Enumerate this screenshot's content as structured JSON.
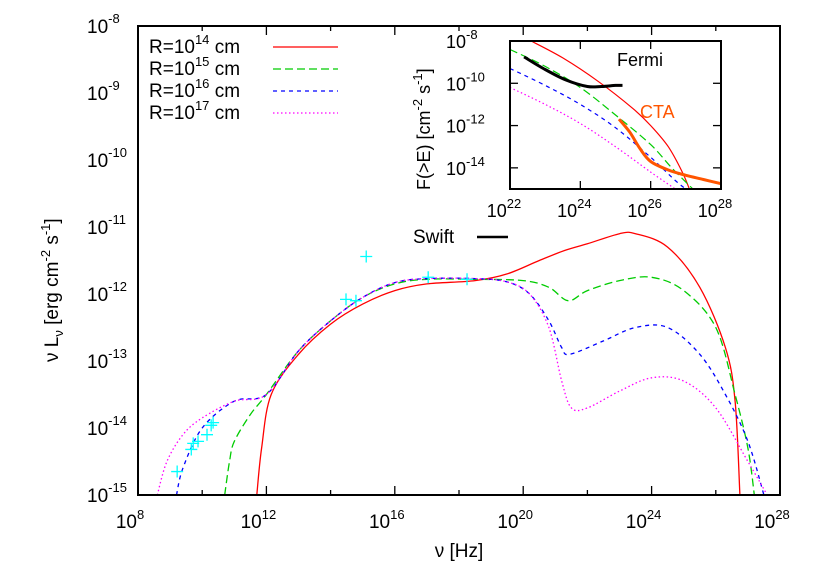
{
  "chart_data": [
    {
      "type": "line",
      "title": "",
      "xlabel": "ν [Hz]",
      "ylabel": "ν L_ν [erg cm^-2 s^-1]",
      "xscale": "log",
      "yscale": "log",
      "xlim": [
        100000000.0,
        1e+28
      ],
      "ylim": [
        1e-15,
        1e-08
      ],
      "x_ticks": [
        "10^8",
        "10^12",
        "10^16",
        "10^20",
        "10^24",
        "10^28"
      ],
      "y_ticks": [
        "10^-8",
        "10^-9",
        "10^-10",
        "10^-11",
        "10^-12",
        "10^-13",
        "10^-14",
        "10^-15"
      ],
      "legend_position": "top-left",
      "grid": false,
      "series": [
        {
          "name": "R=10^14 cm",
          "color": "#ff0000",
          "style": "solid",
          "log_points": [
            [
              11.7,
              -15.0
            ],
            [
              11.85,
              -14.3
            ],
            [
              12.15,
              -13.5
            ],
            [
              13.0,
              -12.9
            ],
            [
              14.0,
              -12.45
            ],
            [
              15.0,
              -12.15
            ],
            [
              16.0,
              -11.95
            ],
            [
              17.0,
              -11.85
            ],
            [
              18.5,
              -11.8
            ],
            [
              19.5,
              -11.7
            ],
            [
              20.5,
              -11.5
            ],
            [
              21.3,
              -11.35
            ],
            [
              22.0,
              -11.25
            ],
            [
              23.0,
              -11.1
            ],
            [
              23.5,
              -11.1
            ],
            [
              24.5,
              -11.3
            ],
            [
              25.5,
              -11.9
            ],
            [
              26.3,
              -12.8
            ],
            [
              26.6,
              -13.6
            ],
            [
              26.75,
              -15.0
            ]
          ]
        },
        {
          "name": "R=10^15 cm",
          "color": "#00cc00",
          "style": "dashed",
          "log_points": [
            [
              10.7,
              -15.0
            ],
            [
              10.85,
              -14.5
            ],
            [
              11.0,
              -14.2
            ],
            [
              11.5,
              -13.8
            ],
            [
              12.0,
              -13.5
            ],
            [
              13.0,
              -12.85
            ],
            [
              14.0,
              -12.4
            ],
            [
              15.0,
              -12.05
            ],
            [
              16.0,
              -11.85
            ],
            [
              17.0,
              -11.78
            ],
            [
              18.5,
              -11.78
            ],
            [
              20.0,
              -11.8
            ],
            [
              20.8,
              -11.9
            ],
            [
              21.4,
              -12.1
            ],
            [
              22.0,
              -11.95
            ],
            [
              23.0,
              -11.8
            ],
            [
              24.0,
              -11.75
            ],
            [
              25.0,
              -11.95
            ],
            [
              26.0,
              -12.5
            ],
            [
              26.6,
              -13.5
            ],
            [
              27.0,
              -14.3
            ],
            [
              27.2,
              -15.0
            ]
          ]
        },
        {
          "name": "R=10^16 cm",
          "color": "#0000ff",
          "style": "dashed-short",
          "log_points": [
            [
              9.2,
              -15.0
            ],
            [
              9.4,
              -14.6
            ],
            [
              10.0,
              -14.0
            ],
            [
              11.0,
              -13.6
            ],
            [
              12.0,
              -13.5
            ],
            [
              13.0,
              -12.85
            ],
            [
              14.0,
              -12.4
            ],
            [
              15.0,
              -12.05
            ],
            [
              16.0,
              -11.83
            ],
            [
              17.0,
              -11.77
            ],
            [
              18.5,
              -11.77
            ],
            [
              19.5,
              -11.82
            ],
            [
              20.2,
              -12.0
            ],
            [
              20.8,
              -12.4
            ],
            [
              21.2,
              -12.8
            ],
            [
              21.45,
              -12.9
            ],
            [
              22.5,
              -12.7
            ],
            [
              23.5,
              -12.5
            ],
            [
              24.5,
              -12.5
            ],
            [
              25.5,
              -12.9
            ],
            [
              26.3,
              -13.5
            ],
            [
              27.0,
              -14.2
            ],
            [
              27.5,
              -15.0
            ]
          ]
        },
        {
          "name": "R=10^17 cm",
          "color": "#ff00ff",
          "style": "dotted",
          "log_points": [
            [
              8.6,
              -15.0
            ],
            [
              8.9,
              -14.5
            ],
            [
              9.4,
              -14.1
            ],
            [
              10.0,
              -13.85
            ],
            [
              11.0,
              -13.6
            ],
            [
              12.0,
              -13.5
            ],
            [
              13.0,
              -12.85
            ],
            [
              14.0,
              -12.4
            ],
            [
              15.0,
              -12.05
            ],
            [
              16.0,
              -11.83
            ],
            [
              17.0,
              -11.77
            ],
            [
              18.5,
              -11.77
            ],
            [
              19.5,
              -11.82
            ],
            [
              20.2,
              -12.0
            ],
            [
              20.8,
              -12.5
            ],
            [
              21.2,
              -13.3
            ],
            [
              21.5,
              -13.7
            ],
            [
              22.0,
              -13.7
            ],
            [
              23.0,
              -13.45
            ],
            [
              24.0,
              -13.25
            ],
            [
              25.0,
              -13.3
            ],
            [
              26.0,
              -13.7
            ],
            [
              27.0,
              -14.5
            ],
            [
              27.6,
              -15.0
            ]
          ]
        },
        {
          "name": "data",
          "color": "#00ffff",
          "style": "markers-plus",
          "log_points": [
            [
              9.22,
              -14.65
            ],
            [
              9.66,
              -14.32
            ],
            [
              9.72,
              -14.23
            ],
            [
              9.87,
              -14.2
            ],
            [
              10.15,
              -14.1
            ],
            [
              10.28,
              -13.96
            ],
            [
              10.34,
              -13.92
            ],
            [
              14.48,
              -12.08
            ],
            [
              14.79,
              -12.1
            ],
            [
              15.11,
              -11.44
            ],
            [
              17.04,
              -11.75
            ],
            [
              18.25,
              -11.78
            ]
          ]
        }
      ]
    },
    {
      "type": "line",
      "title": "",
      "inset": true,
      "xlabel": "",
      "ylabel": "F(>E) [cm^-2 s^-1]",
      "xscale": "log",
      "yscale": "log",
      "xlim": [
        1e+22,
        1e+28
      ],
      "ylim": [
        1e-15,
        1e-08
      ],
      "x_ticks": [
        "10^22",
        "10^24",
        "10^26",
        "10^28"
      ],
      "y_ticks": [
        "10^-8",
        "10^-10",
        "10^-12",
        "10^-14"
      ],
      "annotations": [
        "Fermi",
        "CTA"
      ],
      "series": [
        {
          "name": "R=10^14 cm",
          "color": "#ff0000",
          "style": "solid",
          "log_points": [
            [
              22.6,
              -8.0
            ],
            [
              23.5,
              -8.8
            ],
            [
              24.5,
              -9.9
            ],
            [
              25.5,
              -11.2
            ],
            [
              26.0,
              -12.0
            ],
            [
              26.5,
              -13.0
            ],
            [
              26.9,
              -14.2
            ],
            [
              27.1,
              -15.0
            ]
          ]
        },
        {
          "name": "R=10^15 cm",
          "color": "#00cc00",
          "style": "dashed",
          "log_points": [
            [
              22.0,
              -8.4
            ],
            [
              23.0,
              -9.2
            ],
            [
              24.0,
              -10.2
            ],
            [
              25.0,
              -11.5
            ],
            [
              26.0,
              -12.9
            ],
            [
              26.6,
              -14.0
            ],
            [
              27.2,
              -15.0
            ]
          ]
        },
        {
          "name": "R=10^16 cm",
          "color": "#0000ff",
          "style": "dashed-short",
          "log_points": [
            [
              22.0,
              -9.3
            ],
            [
              23.0,
              -10.1
            ],
            [
              24.0,
              -11.0
            ],
            [
              25.0,
              -12.1
            ],
            [
              26.0,
              -13.5
            ],
            [
              26.7,
              -14.6
            ],
            [
              27.0,
              -15.0
            ]
          ]
        },
        {
          "name": "R=10^17 cm",
          "color": "#ff00ff",
          "style": "dotted",
          "log_points": [
            [
              22.0,
              -10.2
            ],
            [
              23.0,
              -11.0
            ],
            [
              24.0,
              -11.9
            ],
            [
              25.0,
              -13.0
            ],
            [
              26.0,
              -14.2
            ],
            [
              26.7,
              -15.0
            ]
          ]
        },
        {
          "name": "Fermi",
          "color": "#000000",
          "style": "thick",
          "log_points": [
            [
              22.4,
              -8.75
            ],
            [
              23.0,
              -9.35
            ],
            [
              23.6,
              -9.85
            ],
            [
              24.2,
              -10.15
            ],
            [
              24.6,
              -10.15
            ],
            [
              25.0,
              -10.1
            ],
            [
              25.2,
              -10.1
            ]
          ]
        },
        {
          "name": "CTA",
          "color": "#ff5500",
          "style": "thick",
          "log_points": [
            [
              25.1,
              -11.7
            ],
            [
              25.4,
              -12.3
            ],
            [
              25.7,
              -13.1
            ],
            [
              26.0,
              -13.7
            ],
            [
              26.5,
              -14.1
            ],
            [
              27.0,
              -14.35
            ],
            [
              27.5,
              -14.55
            ],
            [
              28.0,
              -14.75
            ]
          ]
        }
      ]
    }
  ],
  "labels": {
    "y_main_prefix": "ν L",
    "y_main_sub": "ν",
    "y_main_unit": " [erg cm",
    "y_main_exp1": "-2",
    "y_main_mid": " s",
    "y_main_exp2": "-1",
    "y_main_end": "]",
    "x_main": "ν [Hz]",
    "inset_y_text": "F(>E) [cm",
    "inset_y_exp1": "-2",
    "inset_y_mid": " s",
    "inset_y_exp2": "-1",
    "inset_y_end": "]",
    "fermi": "Fermi",
    "cta": "CTA",
    "swift": "Swift"
  },
  "legend": [
    {
      "prefix": "R=10",
      "exp": "14",
      "suffix": " cm",
      "color": "#ff0000"
    },
    {
      "prefix": "R=10",
      "exp": "15",
      "suffix": " cm",
      "color": "#00cc00"
    },
    {
      "prefix": "R=10",
      "exp": "16",
      "suffix": " cm",
      "color": "#0000ff"
    },
    {
      "prefix": "R=10",
      "exp": "17",
      "suffix": " cm",
      "color": "#ff00ff"
    }
  ],
  "main_ticks": {
    "x": [
      {
        "base": "10",
        "exp": "8",
        "v": 8
      },
      {
        "base": "10",
        "exp": "12",
        "v": 12
      },
      {
        "base": "10",
        "exp": "16",
        "v": 16
      },
      {
        "base": "10",
        "exp": "20",
        "v": 20
      },
      {
        "base": "10",
        "exp": "24",
        "v": 24
      },
      {
        "base": "10",
        "exp": "28",
        "v": 28
      }
    ],
    "y": [
      {
        "base": "10",
        "exp": "-8",
        "v": -8
      },
      {
        "base": "10",
        "exp": "-9",
        "v": -9
      },
      {
        "base": "10",
        "exp": "-10",
        "v": -10
      },
      {
        "base": "10",
        "exp": "-11",
        "v": -11
      },
      {
        "base": "10",
        "exp": "-12",
        "v": -12
      },
      {
        "base": "10",
        "exp": "-13",
        "v": -13
      },
      {
        "base": "10",
        "exp": "-14",
        "v": -14
      },
      {
        "base": "10",
        "exp": "-15",
        "v": -15
      }
    ]
  },
  "inset_ticks": {
    "x": [
      {
        "base": "10",
        "exp": "22",
        "v": 22
      },
      {
        "base": "10",
        "exp": "24",
        "v": 24
      },
      {
        "base": "10",
        "exp": "26",
        "v": 26
      },
      {
        "base": "10",
        "exp": "28",
        "v": 28
      }
    ],
    "y": [
      {
        "base": "10",
        "exp": "-8",
        "v": -8
      },
      {
        "base": "10",
        "exp": "-10",
        "v": -10
      },
      {
        "base": "10",
        "exp": "-12",
        "v": -12
      },
      {
        "base": "10",
        "exp": "-14",
        "v": -14
      }
    ]
  }
}
